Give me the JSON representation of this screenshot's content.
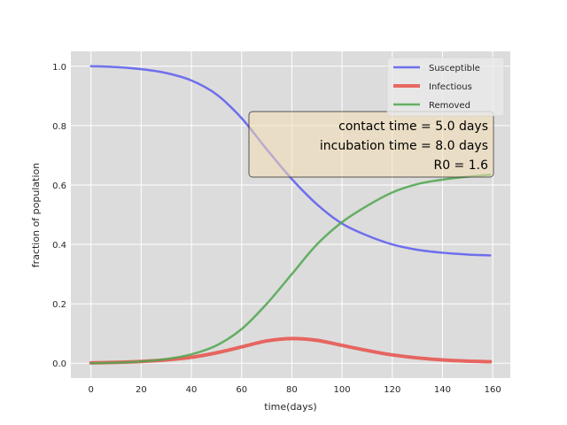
{
  "chart_data": {
    "type": "line",
    "xlabel": "time(days)",
    "ylabel": "fraction of population",
    "xlim": [
      -8,
      167
    ],
    "ylim": [
      -0.05,
      1.05
    ],
    "xticks": [
      0,
      20,
      40,
      60,
      80,
      100,
      120,
      140,
      160
    ],
    "yticks": [
      0.0,
      0.2,
      0.4,
      0.6,
      0.8,
      1.0
    ],
    "xtick_labels": [
      "0",
      "20",
      "40",
      "60",
      "80",
      "100",
      "120",
      "140",
      "160"
    ],
    "ytick_labels": [
      "0.0",
      "0.2",
      "0.4",
      "0.6",
      "0.8",
      "1.0"
    ],
    "grid": true,
    "legend_position": "top-right",
    "series": [
      {
        "name": "Susceptible",
        "color": "#5b5bf0",
        "x": [
          0,
          10,
          20,
          30,
          40,
          50,
          60,
          70,
          80,
          90,
          100,
          110,
          120,
          130,
          140,
          150,
          159
        ],
        "y": [
          1.0,
          0.997,
          0.99,
          0.977,
          0.952,
          0.905,
          0.825,
          0.72,
          0.62,
          0.535,
          0.47,
          0.43,
          0.4,
          0.382,
          0.372,
          0.366,
          0.363
        ]
      },
      {
        "name": "Infectious",
        "color": "#e8504a",
        "x": [
          0,
          10,
          20,
          30,
          40,
          50,
          60,
          70,
          80,
          90,
          100,
          110,
          120,
          130,
          140,
          150,
          159
        ],
        "y": [
          0.001,
          0.003,
          0.006,
          0.011,
          0.02,
          0.035,
          0.055,
          0.075,
          0.083,
          0.077,
          0.06,
          0.043,
          0.028,
          0.018,
          0.011,
          0.007,
          0.005
        ]
      },
      {
        "name": "Removed",
        "color": "#4fa64f",
        "x": [
          0,
          10,
          20,
          30,
          40,
          50,
          60,
          70,
          80,
          90,
          100,
          110,
          120,
          130,
          140,
          150,
          159
        ],
        "y": [
          0.0,
          0.002,
          0.006,
          0.014,
          0.03,
          0.06,
          0.115,
          0.2,
          0.3,
          0.4,
          0.475,
          0.53,
          0.575,
          0.603,
          0.618,
          0.628,
          0.635
        ]
      }
    ],
    "annotation": {
      "lines": [
        "contact time = 5.0 days",
        "incubation time = 8.0 days",
        "R0 = 1.6"
      ]
    }
  },
  "colors": {
    "plot_background": "#dcdcdc",
    "grid": "#ffffff",
    "annotation_fill": "#f5deb3"
  }
}
